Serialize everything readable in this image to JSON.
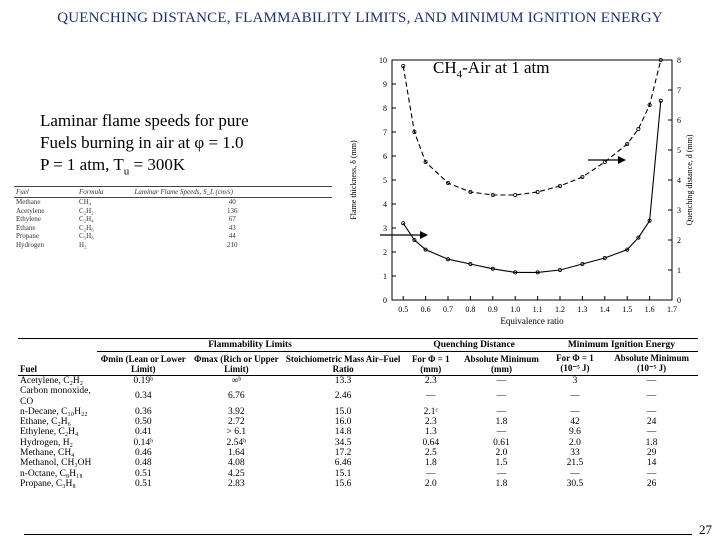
{
  "title": "QUENCHING DISTANCE, FLAMMABILITY LIMITS, AND MINIMUM IGNITION ENERGY",
  "caption": {
    "line1": "Laminar flame speeds for pure",
    "line2": "Fuels burning in air at φ = 1.0",
    "line3": "P = 1 atm, T",
    "line3_sub": "u",
    "line3_end": " = 300K"
  },
  "flame_speed_table": {
    "headers": [
      "Fuel",
      "Formula",
      "Laminar Flame Speeds, S_L (cm/s)"
    ],
    "rows": [
      [
        "Methane",
        "CH₄",
        "40"
      ],
      [
        "Acetylene",
        "C₂H₂",
        "136"
      ],
      [
        "Ethylene",
        "C₂H₄",
        "67"
      ],
      [
        "Ethane",
        "C₂H₆",
        "43"
      ],
      [
        "Propane",
        "C₃H₈",
        "44"
      ],
      [
        "Hydrogen",
        "H₂",
        "210"
      ]
    ]
  },
  "chart_data": {
    "type": "line",
    "title": "CH4-Air at 1 atm",
    "xlabel": "Equivalence ratio",
    "ylabel": "Flame thickness, δ (mm)",
    "y2label": "Quenching distance, d (mm)",
    "xlim": [
      0.45,
      1.7
    ],
    "ylim": [
      0,
      10
    ],
    "y2lim": [
      0,
      8
    ],
    "x_ticks": [
      "0.5",
      "0.6",
      "0.7",
      "0.8",
      "0.9",
      "1.0",
      "1.1",
      "1.2",
      "1.3",
      "1.4",
      "1.5",
      "1.6",
      "1.7"
    ],
    "y_ticks": [
      "0",
      "1",
      "2",
      "3",
      "4",
      "5",
      "6",
      "7",
      "8",
      "9",
      "10"
    ],
    "y2_ticks": [
      "0",
      "1",
      "2",
      "3",
      "4",
      "5",
      "6",
      "7",
      "8"
    ],
    "series": [
      {
        "axis": "left",
        "style": "solid",
        "x": [
          0.5,
          0.55,
          0.6,
          0.7,
          0.8,
          0.9,
          1.0,
          1.1,
          1.2,
          1.3,
          1.4,
          1.5,
          1.55,
          1.6,
          1.65
        ],
        "y": [
          3.2,
          2.5,
          2.1,
          1.7,
          1.5,
          1.3,
          1.15,
          1.15,
          1.25,
          1.5,
          1.75,
          2.1,
          2.6,
          3.3,
          8.3
        ]
      },
      {
        "axis": "right",
        "style": "dashed",
        "x": [
          0.5,
          0.55,
          0.6,
          0.7,
          0.8,
          0.9,
          1.0,
          1.1,
          1.2,
          1.3,
          1.4,
          1.5,
          1.55,
          1.6,
          1.65
        ],
        "y": [
          7.8,
          5.6,
          4.6,
          3.9,
          3.6,
          3.5,
          3.5,
          3.6,
          3.8,
          4.1,
          4.6,
          5.2,
          5.7,
          6.5,
          8.0
        ]
      }
    ]
  },
  "properties_table": {
    "group_headers": [
      "Flammability Limits",
      "Quenching Distance",
      "Minimum Ignition Energy"
    ],
    "column_headers": [
      "Fuel",
      "Φmin (Lean or Lower Limit)",
      "Φmax (Rich or Upper Limit)",
      "Stoichiometric Mass Air–Fuel Ratio",
      "For Φ = 1 (mm)",
      "Absolute Minimum (mm)",
      "For Φ = 1 (10⁻⁵ J)",
      "Absolute Minimum (10⁻⁵ J)"
    ],
    "rows": [
      [
        "Acetylene, C₂H₂",
        "0.19ᵇ",
        "∞ᵇ",
        "13.3",
        "2.3",
        "—",
        "3",
        "—"
      ],
      [
        "Carbon monoxide, CO",
        "0.34",
        "6.76",
        "2.46",
        "—",
        "—",
        "—",
        "—"
      ],
      [
        "n-Decane, C₁₀H₂₂",
        "0.36",
        "3.92",
        "15.0",
        "2.1ᶜ",
        "—",
        "—",
        "—"
      ],
      [
        "Ethane, C₂H₆",
        "0.50",
        "2.72",
        "16.0",
        "2.3",
        "1.8",
        "42",
        "24"
      ],
      [
        "Ethylene, C₂H₄",
        "0.41",
        "> 6.1",
        "14.8",
        "1.3",
        "—",
        "9.6",
        "—"
      ],
      [
        "Hydrogen, H₂",
        "0.14ᵇ",
        "2.54ᵇ",
        "34.5",
        "0.64",
        "0.61",
        "2.0",
        "1.8"
      ],
      [
        "Methane, CH₄",
        "0.46",
        "1.64",
        "17.2",
        "2.5",
        "2.0",
        "33",
        "29"
      ],
      [
        "Methanol, CH₃OH",
        "0.48",
        "4.08",
        "6.46",
        "1.8",
        "1.5",
        "21.5",
        "14"
      ],
      [
        "n-Octane, C₈H₁₈",
        "0.51",
        "4.25",
        "15.1",
        "—",
        "—",
        "—",
        "—"
      ],
      [
        "Propane, C₃H₈",
        "0.51",
        "2.83",
        "15.6",
        "2.0",
        "1.8",
        "30.5",
        "26"
      ]
    ]
  },
  "page_number": "27"
}
